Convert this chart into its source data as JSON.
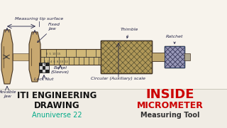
{
  "bg_color": "#f0ece4",
  "sketch_bg": "#f7f3ec",
  "title_left_line1": "ITI ENGINEERING",
  "title_left_line2": "DRAWING",
  "title_left_sub": "Anuniverse 22",
  "title_right_line1": "INSIDE",
  "title_right_line2": "MICROMETER",
  "title_right_sub": "Measuring Tool",
  "title_left_color": "#111111",
  "title_right_color": "#cc0000",
  "sub_left_color": "#00aa88",
  "sub_right_color": "#333333",
  "jaw_color": "#c8a870",
  "barrel_color": "#c8a870",
  "thimble_color": "#b09858",
  "ratchet_color": "#9898b8",
  "label_color": "#222244",
  "arrow_color": "#222244",
  "edge_color": "#443322"
}
